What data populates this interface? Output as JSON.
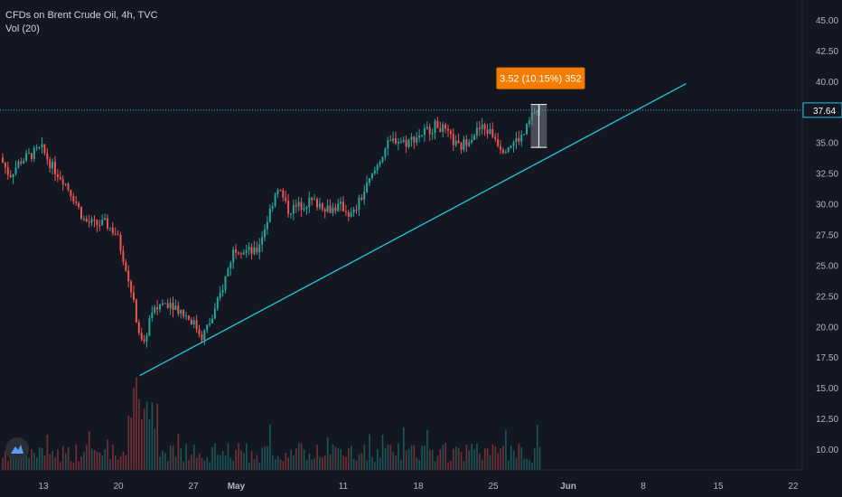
{
  "header": {
    "title": "CFDs on Brent Crude Oil, 4h, TVC",
    "volume_label": "Vol (20)"
  },
  "colors": {
    "background": "#131722",
    "up": "#26a69a",
    "down": "#ef5350",
    "trendline": "#26c6da",
    "price_line": "#26c6da",
    "measure_badge": "#f57c00",
    "grid_axis": "#2a2e39"
  },
  "logo": {
    "icon": "tradingview-logo-icon"
  },
  "chart_data": {
    "type": "candlestick",
    "symbol": "CFDs on Brent Crude Oil",
    "timeframe": "4h",
    "source": "TVC",
    "x_ticks": [
      "13",
      "20",
      "27",
      "May",
      "11",
      "18",
      "25",
      "Jun",
      "8",
      "15",
      "22"
    ],
    "y_ticks": [
      "45.00",
      "42.50",
      "40.00",
      "37.50",
      "35.00",
      "32.50",
      "30.00",
      "27.50",
      "25.00",
      "22.50",
      "20.00",
      "17.50",
      "15.00",
      "12.50",
      "10.00"
    ],
    "ylim": [
      8.5,
      46.5
    ],
    "last_price": "37.64",
    "price_path": [
      [
        "Apr 9",
        34.0
      ],
      [
        "Apr 10",
        32.3
      ],
      [
        "Apr 11",
        33.5
      ],
      [
        "Apr 13",
        34.5
      ],
      [
        "Apr 14",
        33.0
      ],
      [
        "Apr 15",
        32.0
      ],
      [
        "Apr 16",
        30.5
      ],
      [
        "Apr 17",
        28.6
      ],
      [
        "Apr 18",
        28.3
      ],
      [
        "Apr 19",
        28.4
      ],
      [
        "Apr 20",
        27.5
      ],
      [
        "Apr 21",
        24.5
      ],
      [
        "Apr 22",
        20.0
      ],
      [
        "Apr 22.5",
        18.0
      ],
      [
        "Apr 23",
        20.5
      ],
      [
        "Apr 24",
        21.8
      ],
      [
        "Apr 25",
        22.0
      ],
      [
        "Apr 27",
        20.5
      ],
      [
        "Apr 28",
        19.2
      ],
      [
        "Apr 29",
        20.8
      ],
      [
        "Apr 30",
        23.5
      ],
      [
        "May 1",
        26.5
      ],
      [
        "May 2",
        26.2
      ],
      [
        "May 3",
        26.0
      ],
      [
        "May 4",
        28.5
      ],
      [
        "May 5",
        31.5
      ],
      [
        "May 6",
        29.5
      ],
      [
        "May 7",
        29.8
      ],
      [
        "May 8",
        30.2
      ],
      [
        "May 9",
        30.0
      ],
      [
        "May 10",
        29.6
      ],
      [
        "May 11",
        29.8
      ],
      [
        "May 12",
        29.0
      ],
      [
        "May 13",
        30.8
      ],
      [
        "May 14",
        32.5
      ],
      [
        "May 15",
        34.5
      ],
      [
        "May 16",
        35.3
      ],
      [
        "May 17",
        35.0
      ],
      [
        "May 18",
        35.5
      ],
      [
        "May 19",
        36.0
      ],
      [
        "May 20",
        36.5
      ],
      [
        "May 21",
        35.5
      ],
      [
        "May 22",
        34.5
      ],
      [
        "May 23",
        35.5
      ],
      [
        "May 24",
        36.2
      ],
      [
        "May 25",
        35.8
      ],
      [
        "May 26",
        34.5
      ],
      [
        "May 27",
        35.0
      ],
      [
        "May 28",
        35.6
      ],
      [
        "May 29",
        37.6
      ]
    ],
    "trendline": {
      "from": [
        "Apr 22",
        16.0
      ],
      "to": [
        "Jun 12",
        39.8
      ]
    },
    "measure": {
      "label": "3.52 (10.15%) 352",
      "low": 34.6,
      "high": 38.1,
      "from": "May 28.5",
      "to": "May 30"
    },
    "volume": {
      "label": "Vol (20)"
    }
  }
}
